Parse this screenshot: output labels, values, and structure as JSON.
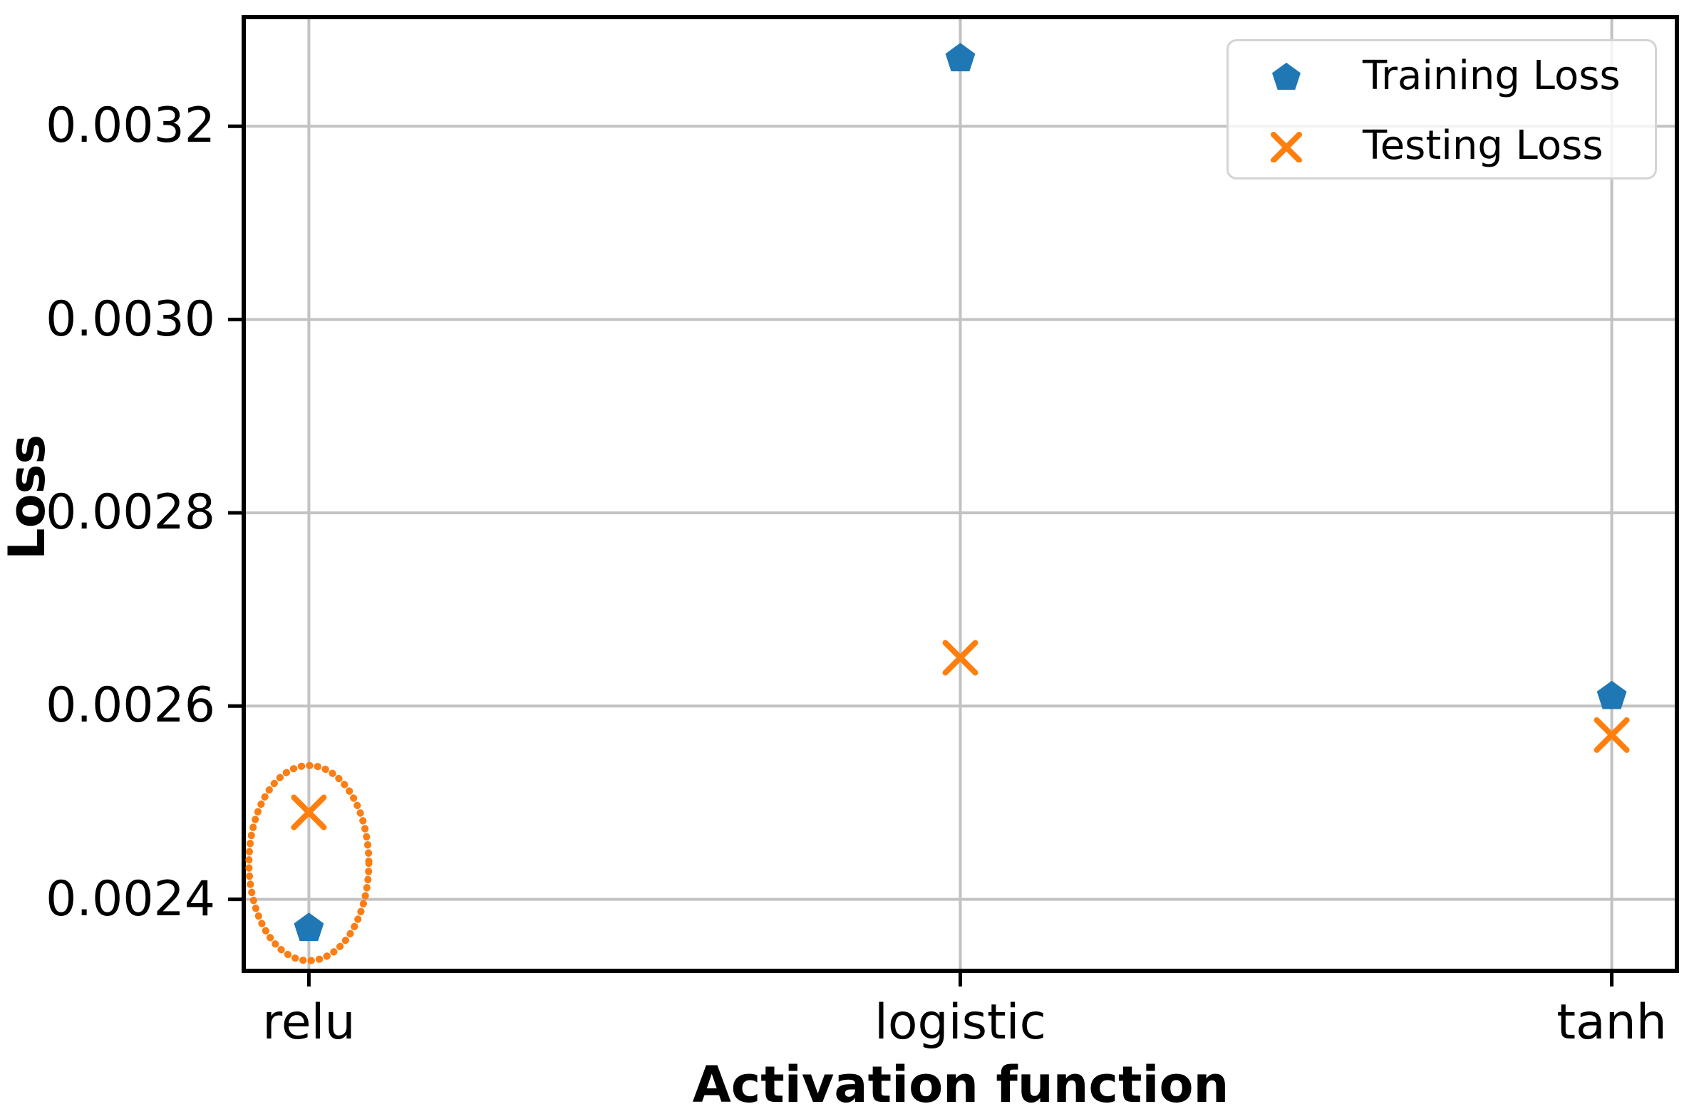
{
  "chart_data": {
    "type": "scatter",
    "title": "",
    "xlabel": "Activation function",
    "ylabel": "Loss",
    "categories": [
      "relu",
      "logistic",
      "tanh"
    ],
    "series": [
      {
        "name": "Training Loss",
        "marker": "pentagon",
        "color": "#1f77b4",
        "values": [
          0.00237,
          0.00327,
          0.00261
        ]
      },
      {
        "name": "Testing Loss",
        "marker": "x",
        "color": "#ff7f0e",
        "values": [
          0.00249,
          0.00265,
          0.00257
        ]
      }
    ],
    "ytick_values": [
      0.0024,
      0.0026,
      0.0028,
      0.003,
      0.0032
    ],
    "ytick_labels": [
      "0.0024",
      "0.0026",
      "0.0028",
      "0.0030",
      "0.0032"
    ],
    "xlim": [
      -0.1,
      2.1
    ],
    "ylim": [
      0.002326,
      0.003313
    ],
    "grid": true,
    "grid_color": "#c2c2c2",
    "spine_color": "#000000",
    "legend_position": "upper right",
    "annotation": {
      "type": "ellipse",
      "color": "#fb7e14",
      "category_index": 0,
      "center_loss": 0.0024375,
      "radius_x_categories": 0.092,
      "radius_y_loss": 0.000101,
      "style": "dotted"
    }
  }
}
